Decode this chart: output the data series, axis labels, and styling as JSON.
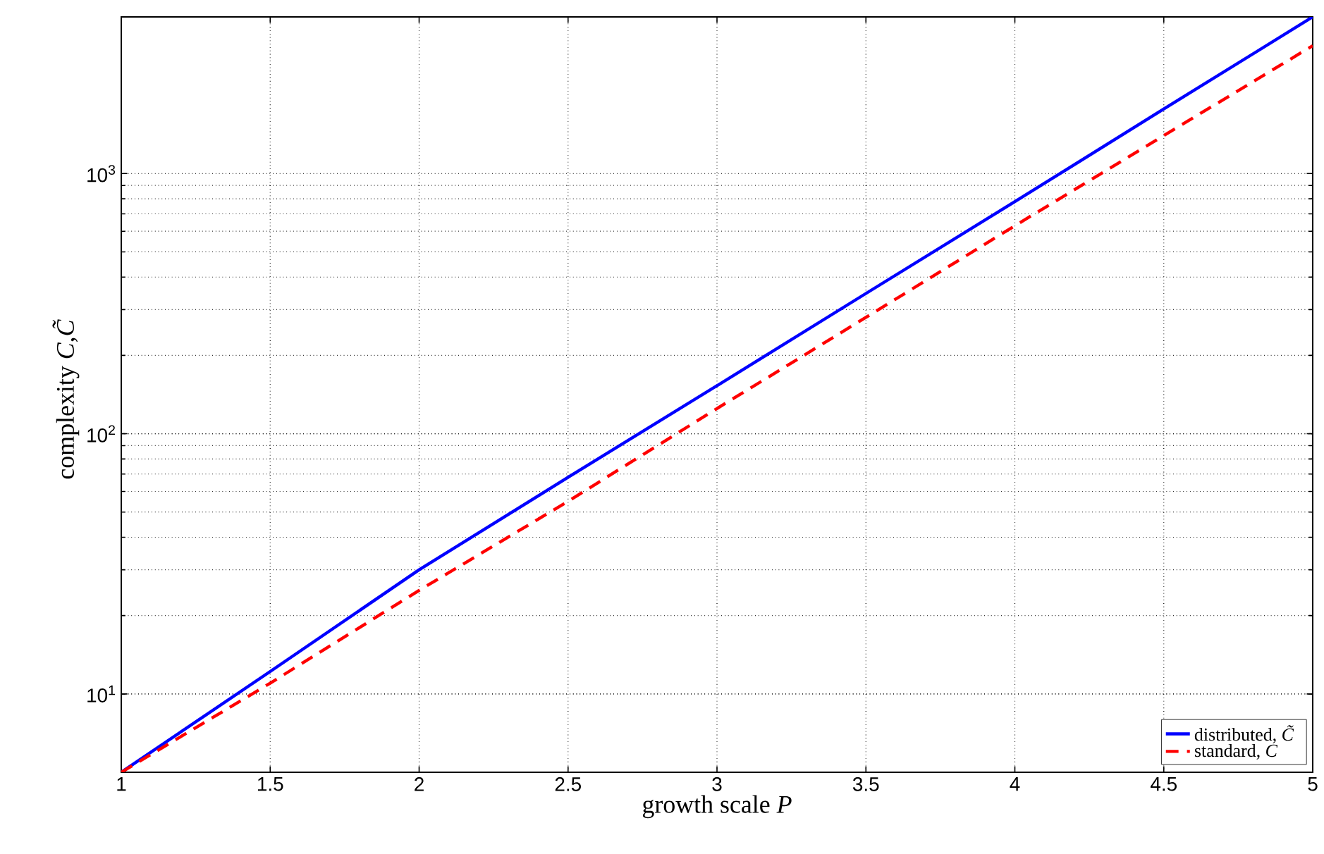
{
  "chart_data": {
    "type": "line",
    "xlabel": "growth scale *P*",
    "ylabel": "complexity *C*,*C̃*",
    "x": [
      1,
      1.5,
      2,
      2.5,
      3,
      3.5,
      4,
      4.5,
      5
    ],
    "series": [
      {
        "name": "distributed, *C̃*",
        "color": "#0000ff",
        "line_style": "solid",
        "values": [
          5,
          12.2,
          30,
          68,
          153,
          346,
          780,
          1770,
          4000
        ]
      },
      {
        "name": "standard, *C*",
        "color": "#ff0000",
        "line_style": "dashed",
        "values": [
          5,
          11,
          25,
          55,
          125,
          280,
          630,
          1400,
          3100
        ]
      }
    ],
    "log": "y",
    "xlim": [
      1,
      5
    ],
    "ylim": [
      5,
      4000
    ],
    "xticks": [
      1,
      1.5,
      2,
      2.5,
      3,
      3.5,
      4,
      4.5,
      5
    ],
    "yticks": [
      {
        "value": 10,
        "label": "10$^{1}$"
      },
      {
        "value": 100,
        "label": "10$^{2}$"
      },
      {
        "value": 1000,
        "label": "10$^{3}$"
      }
    ],
    "grid": true,
    "legend": "bottom right",
    "marker": "none"
  }
}
